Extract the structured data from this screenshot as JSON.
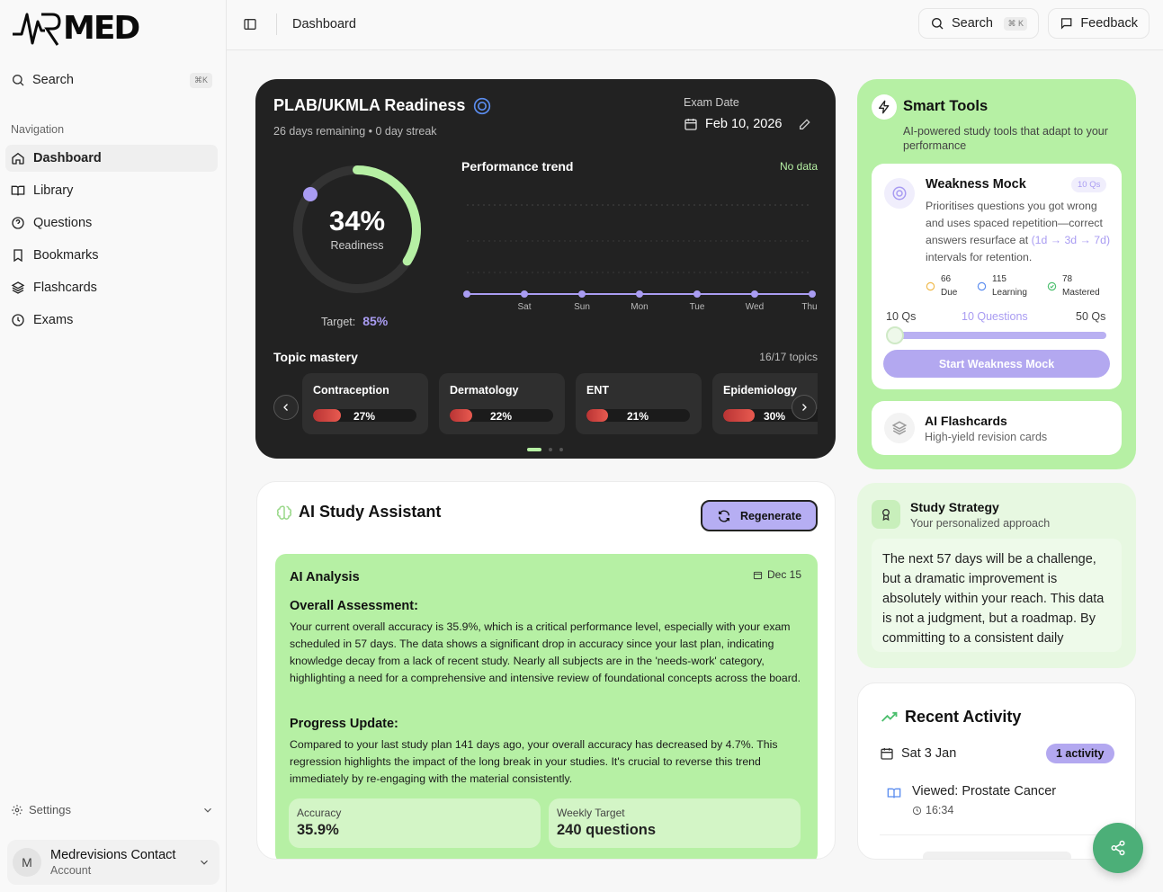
{
  "app": {
    "logo_text": "MED"
  },
  "sidebar": {
    "search_label": "Search",
    "search_shortcut": "⌘K",
    "nav_title": "Navigation",
    "items": [
      {
        "label": "Dashboard",
        "icon": "home-icon",
        "active": true
      },
      {
        "label": "Library",
        "icon": "book-open-icon"
      },
      {
        "label": "Questions",
        "icon": "help-circle-icon"
      },
      {
        "label": "Bookmarks",
        "icon": "bookmark-icon"
      },
      {
        "label": "Flashcards",
        "icon": "layers-icon"
      },
      {
        "label": "Exams",
        "icon": "clock-icon"
      }
    ],
    "settings_label": "Settings",
    "account": {
      "initial": "M",
      "name": "Medrevisions Contact",
      "role": "Account"
    }
  },
  "topbar": {
    "breadcrumb": "Dashboard",
    "search_label": "Search",
    "search_shortcut": "⌘ K",
    "feedback_label": "Feedback"
  },
  "readiness": {
    "title": "PLAB/UKMLA Readiness",
    "subtitle": "26 days remaining • 0 day streak",
    "exam_date_label": "Exam Date",
    "exam_date": "Feb 10, 2026",
    "percent_text": "34%",
    "percent_value": 34,
    "percent_label": "Readiness",
    "target_label": "Target:",
    "target_value": "85%",
    "trend_title": "Performance trend",
    "trend_status": "No data",
    "trend_days": [
      "Sat",
      "Sun",
      "Mon",
      "Tue",
      "Wed",
      "Thu"
    ],
    "mastery_title": "Topic mastery",
    "mastery_count": "16/17 topics",
    "topics": [
      {
        "name": "Contraception",
        "pct_text": "27%",
        "value": 27
      },
      {
        "name": "Dermatology",
        "pct_text": "22%",
        "value": 22
      },
      {
        "name": "ENT",
        "pct_text": "21%",
        "value": 21
      },
      {
        "name": "Epidemiology",
        "pct_text": "30%",
        "value": 30
      }
    ],
    "colors": {
      "accent": "#b6f0a4",
      "purple": "#a99cf2",
      "bar": "#e85a50"
    }
  },
  "smart_tools": {
    "title": "Smart Tools",
    "subtitle": "AI-powered study tools that adapt to your performance",
    "weakness": {
      "title": "Weakness Mock",
      "badge": "10 Qs",
      "desc_pre": "Prioritises questions you got wrong and uses spaced repetition—correct answers resurface at ",
      "desc_intervals": "(1d → 3d → 7d)",
      "desc_post": " intervals for retention.",
      "stats": [
        {
          "num": "66",
          "label": "Due",
          "color": "#f0b94a"
        },
        {
          "num": "115",
          "label": "Learning",
          "color": "#5b8def"
        },
        {
          "num": "78",
          "label": "Mastered",
          "color": "#4cbf6e"
        }
      ],
      "slider_min": "10 Qs",
      "slider_value": "10 Questions",
      "slider_max": "50 Qs",
      "button": "Start Weakness Mock"
    },
    "flashcards": {
      "title": "AI Flashcards",
      "subtitle": "High-yield revision cards"
    }
  },
  "assistant": {
    "title": "AI Study Assistant",
    "regenerate": "Regenerate",
    "analysis_title": "AI Analysis",
    "analysis_date": "Dec 15",
    "overall_heading": "Overall Assessment:",
    "overall_text": "Your current overall accuracy is 35.9%, which is a critical performance level, especially with your exam scheduled in 57 days. The data shows a significant drop in accuracy since your last plan, indicating knowledge decay from a lack of recent study. Nearly all subjects are in the 'needs-work' category, highlighting a need for a comprehensive and intensive review of foundational concepts across the board.",
    "progress_heading": "Progress Update:",
    "progress_text": "Compared to your last study plan 141 days ago, your overall accuracy has decreased by 4.7%. This regression highlights the impact of the long break in your studies. It's crucial to reverse this trend immediately by re-engaging with the material consistently.",
    "stats": [
      {
        "label": "Accuracy",
        "value": "35.9%"
      },
      {
        "label": "Weekly Target",
        "value": "240 questions"
      }
    ]
  },
  "strategy": {
    "title": "Study Strategy",
    "subtitle": "Your personalized approach",
    "text": "The next 57 days will be a challenge, but a dramatic improvement is absolutely within your reach. This data is not a judgment, but a roadmap. By committing to a consistent daily schedule..."
  },
  "recent": {
    "title": "Recent Activity",
    "date": "Sat 3 Jan",
    "badge": "1 activity",
    "item": "Viewed: Prostate Cancer",
    "time": "16:34"
  }
}
